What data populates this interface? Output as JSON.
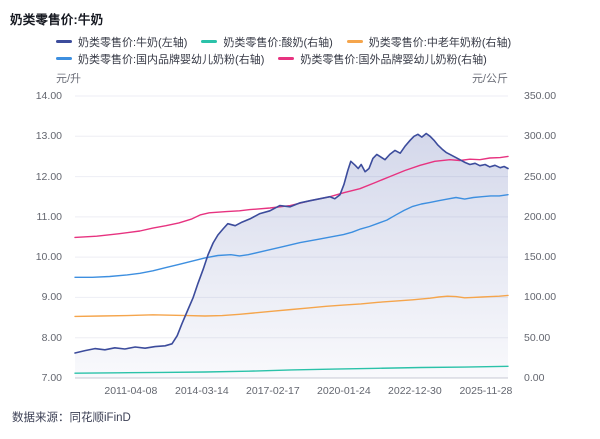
{
  "header": {
    "title": "奶类零售价:牛奶"
  },
  "footer": {
    "source": "数据来源：同花顺iFinD"
  },
  "colors": {
    "milk_navy": "#3C4C9C",
    "yogurt_teal": "#2BC2A9",
    "senior_powder_orange": "#F5A54C",
    "domestic_formula_blue": "#3D8FE0",
    "foreign_formula_pink": "#E73380",
    "grid": "#EDEEF4",
    "axis_line": "#C9CBD6",
    "area_fill": "#6573B6"
  },
  "chart_data": {
    "type": "line",
    "title": "奶类零售价:牛奶",
    "grid": true,
    "legend_position": "top",
    "left_axis": {
      "unit": "元/升",
      "min": 7,
      "max": 14,
      "ticks": [
        "14.00",
        "13.00",
        "12.00",
        "11.00",
        "10.00",
        "9.00",
        "8.00",
        "7.00"
      ]
    },
    "right_axis": {
      "unit": "元/公斤",
      "min": 0,
      "max": 350,
      "ticks": [
        "350.00",
        "300.00",
        "250.00",
        "200.00",
        "150.00",
        "100.00",
        "50.00",
        "0.00"
      ]
    },
    "x_axis": {
      "tick_labels": [
        "2011-04-08",
        "2014-03-14",
        "2017-02-17",
        "2020-01-24",
        "2022-12-30",
        "2025-11-28"
      ],
      "tick_pos_pct": [
        12.9,
        29.3,
        45.7,
        62.1,
        78.5,
        94.9
      ]
    },
    "legend_rows": [
      [
        0,
        1,
        2
      ],
      [
        3,
        4
      ]
    ],
    "series": [
      {
        "name": "奶类零售价:牛奶(左轴)",
        "axis": "left",
        "color_key": "milk_navy",
        "area": true,
        "points": [
          [
            0,
            7.62
          ],
          [
            2.3,
            7.68
          ],
          [
            4.6,
            7.73
          ],
          [
            6.9,
            7.7
          ],
          [
            9.2,
            7.75
          ],
          [
            11.5,
            7.72
          ],
          [
            13.9,
            7.77
          ],
          [
            16.2,
            7.74
          ],
          [
            18.5,
            7.78
          ],
          [
            20.8,
            7.8
          ],
          [
            22.4,
            7.85
          ],
          [
            23.6,
            8.05
          ],
          [
            24.7,
            8.35
          ],
          [
            26.1,
            8.7
          ],
          [
            27.3,
            9.0
          ],
          [
            28.4,
            9.35
          ],
          [
            29.6,
            9.7
          ],
          [
            30.7,
            10.05
          ],
          [
            31.9,
            10.35
          ],
          [
            33.0,
            10.55
          ],
          [
            34.2,
            10.7
          ],
          [
            35.3,
            10.83
          ],
          [
            37.0,
            10.78
          ],
          [
            38.6,
            10.87
          ],
          [
            40.4,
            10.95
          ],
          [
            42.7,
            11.08
          ],
          [
            45.0,
            11.15
          ],
          [
            47.3,
            11.28
          ],
          [
            49.7,
            11.25
          ],
          [
            52.0,
            11.35
          ],
          [
            54.3,
            11.4
          ],
          [
            56.6,
            11.45
          ],
          [
            58.9,
            11.5
          ],
          [
            60.0,
            11.45
          ],
          [
            61.2,
            11.55
          ],
          [
            62.1,
            11.8
          ],
          [
            63.0,
            12.15
          ],
          [
            63.7,
            12.38
          ],
          [
            64.7,
            12.28
          ],
          [
            65.4,
            12.2
          ],
          [
            66.1,
            12.3
          ],
          [
            67.0,
            12.12
          ],
          [
            67.9,
            12.2
          ],
          [
            68.8,
            12.45
          ],
          [
            69.7,
            12.55
          ],
          [
            70.7,
            12.48
          ],
          [
            71.6,
            12.42
          ],
          [
            72.7,
            12.55
          ],
          [
            73.9,
            12.65
          ],
          [
            75.1,
            12.58
          ],
          [
            76.2,
            12.75
          ],
          [
            77.4,
            12.9
          ],
          [
            78.3,
            13.0
          ],
          [
            79.2,
            13.05
          ],
          [
            80.1,
            12.98
          ],
          [
            81.1,
            13.07
          ],
          [
            82.0,
            13.0
          ],
          [
            82.9,
            12.9
          ],
          [
            83.8,
            12.78
          ],
          [
            84.8,
            12.68
          ],
          [
            85.7,
            12.6
          ],
          [
            86.6,
            12.55
          ],
          [
            87.8,
            12.48
          ],
          [
            88.9,
            12.42
          ],
          [
            90.1,
            12.35
          ],
          [
            91.2,
            12.3
          ],
          [
            92.4,
            12.33
          ],
          [
            93.5,
            12.27
          ],
          [
            94.7,
            12.3
          ],
          [
            95.8,
            12.24
          ],
          [
            97.0,
            12.28
          ],
          [
            98.2,
            12.22
          ],
          [
            99.1,
            12.25
          ],
          [
            100,
            12.2
          ]
        ]
      },
      {
        "name": "奶类零售价:酸奶(右轴)",
        "axis": "right",
        "color_key": "yogurt_teal",
        "area": false,
        "points": [
          [
            0,
            6
          ],
          [
            10,
            6.5
          ],
          [
            20,
            7
          ],
          [
            30,
            7.5
          ],
          [
            40,
            8.5
          ],
          [
            50,
            10
          ],
          [
            60,
            11
          ],
          [
            70,
            12
          ],
          [
            80,
            13
          ],
          [
            90,
            13.5
          ],
          [
            100,
            14.5
          ]
        ]
      },
      {
        "name": "奶类零售价:中老年奶粉(右轴)",
        "axis": "right",
        "color_key": "senior_powder_orange",
        "area": false,
        "points": [
          [
            0,
            76.5
          ],
          [
            6,
            77
          ],
          [
            12,
            77.5
          ],
          [
            18,
            78.5
          ],
          [
            22,
            78
          ],
          [
            26,
            77.5
          ],
          [
            30,
            77
          ],
          [
            34,
            77.5
          ],
          [
            38,
            79
          ],
          [
            42,
            81
          ],
          [
            46,
            83
          ],
          [
            50,
            85
          ],
          [
            54,
            87
          ],
          [
            58,
            89
          ],
          [
            62,
            90.5
          ],
          [
            66,
            92
          ],
          [
            70,
            94
          ],
          [
            74,
            95.5
          ],
          [
            78,
            97
          ],
          [
            82,
            99
          ],
          [
            84,
            100.5
          ],
          [
            86,
            101.5
          ],
          [
            88,
            101
          ],
          [
            90,
            99.5
          ],
          [
            92,
            100
          ],
          [
            94,
            100.5
          ],
          [
            96,
            101
          ],
          [
            98,
            101.5
          ],
          [
            100,
            102.5
          ]
        ]
      },
      {
        "name": "奶类零售价:国内品牌婴幼儿奶粉(右轴)",
        "axis": "right",
        "color_key": "domestic_formula_blue",
        "area": false,
        "points": [
          [
            0,
            125
          ],
          [
            4,
            125
          ],
          [
            8,
            126
          ],
          [
            12,
            128
          ],
          [
            15,
            130
          ],
          [
            18,
            133
          ],
          [
            21,
            137
          ],
          [
            24,
            141
          ],
          [
            27,
            145
          ],
          [
            30,
            149
          ],
          [
            33,
            152
          ],
          [
            36,
            153
          ],
          [
            38,
            151.5
          ],
          [
            40,
            153
          ],
          [
            44,
            158
          ],
          [
            48,
            163
          ],
          [
            52,
            168
          ],
          [
            56,
            172
          ],
          [
            60,
            176
          ],
          [
            62,
            178
          ],
          [
            64,
            181
          ],
          [
            66,
            185
          ],
          [
            68,
            188
          ],
          [
            70,
            192
          ],
          [
            72,
            196
          ],
          [
            74,
            202
          ],
          [
            76,
            208
          ],
          [
            78,
            213
          ],
          [
            80,
            216
          ],
          [
            82,
            218
          ],
          [
            84,
            220
          ],
          [
            86,
            222
          ],
          [
            88,
            224
          ],
          [
            90,
            222
          ],
          [
            92,
            224
          ],
          [
            94,
            225
          ],
          [
            96,
            226
          ],
          [
            98,
            226
          ],
          [
            100,
            227.5
          ]
        ]
      },
      {
        "name": "奶类零售价:国外品牌婴幼儿奶粉(右轴)",
        "axis": "right",
        "color_key": "foreign_formula_pink",
        "area": false,
        "points": [
          [
            0,
            174.5
          ],
          [
            5,
            176
          ],
          [
            10,
            179
          ],
          [
            15,
            182.5
          ],
          [
            18,
            186
          ],
          [
            21,
            189
          ],
          [
            24,
            192.5
          ],
          [
            27,
            197.5
          ],
          [
            29,
            202.5
          ],
          [
            31,
            205
          ],
          [
            35,
            206.5
          ],
          [
            38,
            207.5
          ],
          [
            40.4,
            209
          ],
          [
            45,
            211
          ],
          [
            49.7,
            214
          ],
          [
            54.3,
            220
          ],
          [
            58.9,
            225
          ],
          [
            62.1,
            230
          ],
          [
            65.8,
            235
          ],
          [
            69.3,
            242.5
          ],
          [
            72.7,
            250
          ],
          [
            76.2,
            257.5
          ],
          [
            79.7,
            264
          ],
          [
            83.1,
            269
          ],
          [
            86.6,
            271
          ],
          [
            88.9,
            270
          ],
          [
            91.2,
            271.5
          ],
          [
            93.5,
            271
          ],
          [
            95.8,
            273
          ],
          [
            98.2,
            273.5
          ],
          [
            100,
            275
          ]
        ]
      }
    ]
  }
}
